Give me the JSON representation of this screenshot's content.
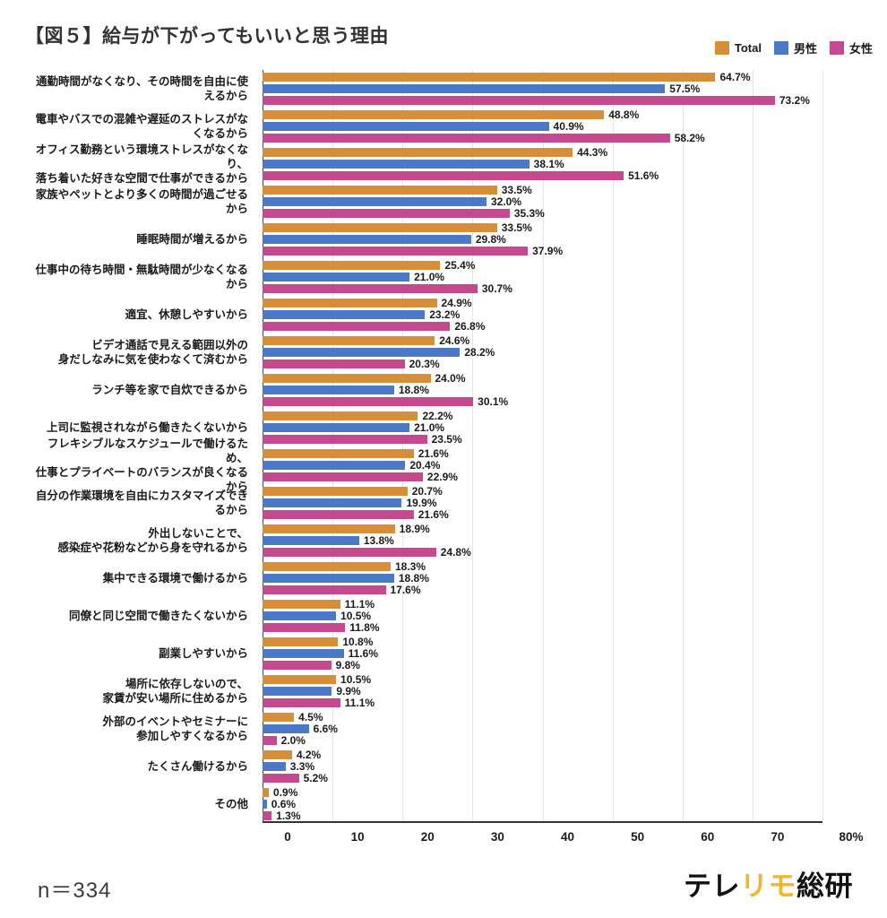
{
  "header": {
    "title": "【図５】給与が下がってもいいと思う理由"
  },
  "legend": [
    {
      "label": "Total",
      "color": "#D68F38"
    },
    {
      "label": "男性",
      "color": "#4C78C8"
    },
    {
      "label": "女性",
      "color": "#C4498F"
    }
  ],
  "chart_data": {
    "type": "bar",
    "orientation": "horizontal",
    "title": "【図５】給与が下がってもいいと思う理由",
    "categories": [
      "通勤時間がなくなり、その時間を自由に使えるから",
      "電車やバスでの混雑や遅延のストレスがなくなるから",
      "オフィス勤務という環境ストレスがなくなり、\n落ち着いた好きな空間で仕事ができるから",
      "家族やペットとより多くの時間が過ごせるから",
      "睡眠時間が増えるから",
      "仕事中の待ち時間・無駄時間が少なくなるから",
      "適宜、休憩しやすいから",
      "ビデオ通話で見える範囲以外の\n身だしなみに気を使わなくて済むから",
      "ランチ等を家で自炊できるから",
      "上司に監視されながら働きたくないから",
      "フレキシブルなスケジュールで働けるため、\n仕事とプライベートのバランスが良くなるから",
      "自分の作業環境を自由にカスタマイズできるから",
      "外出しないことで、\n感染症や花粉などから身を守れるから",
      "集中できる環境で働けるから",
      "同僚と同じ空間で働きたくないから",
      "副業しやすいから",
      "場所に依存しないので、\n家賃が安い場所に住めるから",
      "外部のイベントやセミナーに\n参加しやすくなるから",
      "たくさん働けるから",
      "その他"
    ],
    "series": [
      {
        "name": "Total",
        "color": "#D68F38",
        "values": [
          64.7,
          48.8,
          44.3,
          33.5,
          33.5,
          25.4,
          24.9,
          24.6,
          24.0,
          22.2,
          21.6,
          20.7,
          18.9,
          18.3,
          11.1,
          10.8,
          10.5,
          4.5,
          4.2,
          0.9
        ]
      },
      {
        "name": "男性",
        "color": "#4C78C8",
        "values": [
          57.5,
          40.9,
          38.1,
          32.0,
          29.8,
          21.0,
          23.2,
          28.2,
          18.8,
          21.0,
          20.4,
          19.9,
          13.8,
          18.8,
          10.5,
          11.6,
          9.9,
          6.6,
          3.3,
          0.6
        ]
      },
      {
        "name": "女性",
        "color": "#C4498F",
        "values": [
          73.2,
          58.2,
          51.6,
          35.3,
          37.9,
          30.7,
          26.8,
          20.3,
          30.1,
          23.5,
          22.9,
          21.6,
          24.8,
          17.6,
          11.8,
          9.8,
          11.1,
          2.0,
          5.2,
          1.3
        ]
      }
    ],
    "value_suffix": "%",
    "xlim": [
      0,
      80
    ],
    "xticks": [
      "0",
      "10",
      "20",
      "30",
      "40",
      "50",
      "60",
      "70",
      "80%"
    ],
    "grid": true,
    "legend_position": "top-right"
  },
  "footer": {
    "sample_size": "n＝334",
    "logo": {
      "part1": "テレ",
      "part2": "リモ",
      "part3": "総研",
      "accent_color": "#F2B42C"
    }
  }
}
